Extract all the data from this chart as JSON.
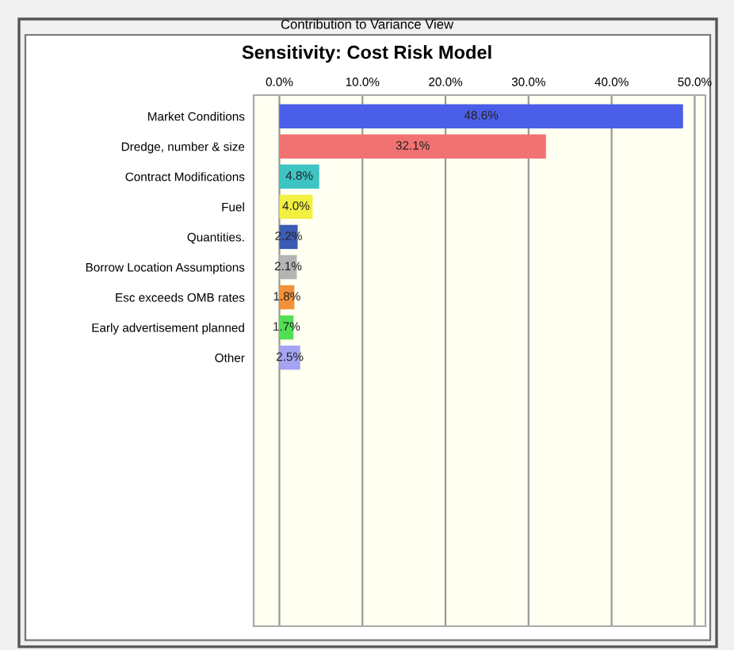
{
  "chart_data": {
    "type": "bar",
    "orientation": "horizontal",
    "title": "Contribution to Variance View",
    "subtitle": "Sensitivity: Cost Risk Model",
    "categories": [
      "Market Conditions",
      "Dredge, number & size",
      "Contract Modifications",
      "Fuel",
      "Quantities.",
      "Borrow Location Assumptions",
      "Esc exceeds OMB rates",
      "Early advertisement planned",
      "Other"
    ],
    "values": [
      48.6,
      32.1,
      4.8,
      4.0,
      2.2,
      2.1,
      1.8,
      1.7,
      2.5
    ],
    "colors": [
      "#4a5ee8",
      "#f27272",
      "#3fc4c4",
      "#f2f040",
      "#3b5cb4",
      "#b4b4b4",
      "#f29238",
      "#52e052",
      "#a4a4f2"
    ],
    "value_labels": [
      "48.6%",
      "32.1%",
      "4.8%",
      "4.0%",
      "2.2%",
      "2.1%",
      "1.8%",
      "1.7%",
      "2.5%"
    ],
    "xlim": [
      -3.1,
      51.3
    ],
    "xticks": [
      {
        "value": 0,
        "label": "0.0%"
      },
      {
        "value": 10,
        "label": "10.0%"
      },
      {
        "value": 20,
        "label": "20.0%"
      },
      {
        "value": 30,
        "label": "30.0%"
      },
      {
        "value": 40,
        "label": "40.0%"
      },
      {
        "value": 50,
        "label": "50.0%"
      }
    ],
    "grid": "x"
  }
}
